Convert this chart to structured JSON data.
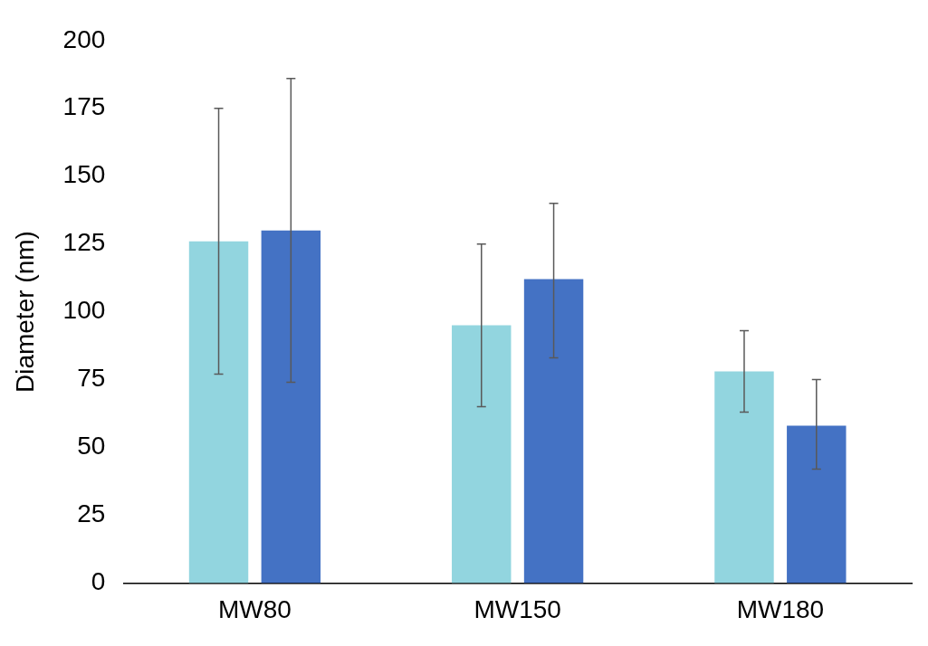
{
  "chart_data": {
    "type": "bar",
    "ylabel": "Diameter (nm)",
    "categories": [
      "MW80",
      "MW150",
      "MW180"
    ],
    "series": [
      {
        "color": "#92d5df",
        "values": [
          126,
          95,
          78
        ],
        "errors": [
          [
            77,
            175
          ],
          [
            65,
            125
          ],
          [
            63,
            93
          ]
        ]
      },
      {
        "color": "#4472c4",
        "values": [
          130,
          112,
          58
        ],
        "errors": [
          [
            74,
            186
          ],
          [
            83,
            140
          ],
          [
            42,
            75
          ]
        ]
      }
    ],
    "ylim": [
      0,
      200
    ],
    "yticks": [
      0,
      25,
      50,
      75,
      100,
      125,
      150,
      175,
      200
    ],
    "grid": false,
    "legend": false
  }
}
